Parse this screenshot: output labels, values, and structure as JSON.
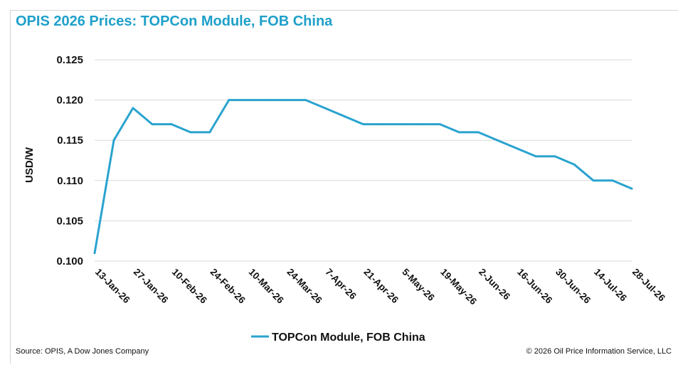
{
  "title": "OPIS 2026 Prices: TOPCon Module, FOB China",
  "source": "Source: OPIS, A Dow Jones Company",
  "copyright": "© 2026 Oil Price Information Service, LLC",
  "colors": {
    "title": "#1ea0c9",
    "line": "#2aa3cf",
    "grid": "#d9d9d9"
  },
  "chart_data": {
    "type": "line",
    "title": "OPIS 2026 Prices: TOPCon Module, FOB China",
    "xlabel": "",
    "ylabel": "USD/W",
    "ylim": [
      0.1,
      0.125
    ],
    "yticks": [
      0.1,
      0.105,
      0.11,
      0.115,
      0.12,
      0.125
    ],
    "ytick_labels": [
      "0.100",
      "0.105",
      "0.110",
      "0.115",
      "0.120",
      "0.125"
    ],
    "xlim": [
      "2026-01-13",
      "2026-07-28"
    ],
    "xtick_labels": [
      "13-Jan-26",
      "27-Jan-26",
      "10-Feb-26",
      "24-Feb-26",
      "10-Mar-26",
      "24-Mar-26",
      "7-Apr-26",
      "21-Apr-26",
      "5-May-26",
      "19-May-26",
      "2-Jun-26",
      "16-Jun-26",
      "30-Jun-26",
      "14-Jul-26",
      "28-Jul-26"
    ],
    "xtick_dates": [
      "2026-01-13",
      "2026-01-27",
      "2026-02-10",
      "2026-02-24",
      "2026-03-10",
      "2026-03-24",
      "2026-04-07",
      "2026-04-21",
      "2026-05-05",
      "2026-05-19",
      "2026-06-02",
      "2026-06-16",
      "2026-06-30",
      "2026-07-14",
      "2026-07-28"
    ],
    "grid": true,
    "legend_position": "bottom",
    "series": [
      {
        "name": "TOPCon Module, FOB China",
        "x": [
          "2026-01-13",
          "2026-01-20",
          "2026-01-27",
          "2026-02-03",
          "2026-02-10",
          "2026-02-17",
          "2026-02-24",
          "2026-03-03",
          "2026-03-10",
          "2026-03-17",
          "2026-03-24",
          "2026-03-31",
          "2026-04-07",
          "2026-04-14",
          "2026-04-21",
          "2026-04-28",
          "2026-05-05",
          "2026-05-12",
          "2026-05-19",
          "2026-05-26",
          "2026-06-02",
          "2026-06-09",
          "2026-06-16",
          "2026-06-23",
          "2026-06-30",
          "2026-07-07",
          "2026-07-14",
          "2026-07-21",
          "2026-07-28"
        ],
        "values": [
          0.101,
          0.115,
          0.119,
          0.117,
          0.117,
          0.116,
          0.116,
          0.12,
          0.12,
          0.12,
          0.12,
          0.12,
          0.119,
          0.118,
          0.117,
          0.117,
          0.117,
          0.117,
          0.117,
          0.116,
          0.116,
          0.115,
          0.114,
          0.113,
          0.113,
          0.112,
          0.11,
          0.11,
          0.109
        ]
      }
    ]
  }
}
